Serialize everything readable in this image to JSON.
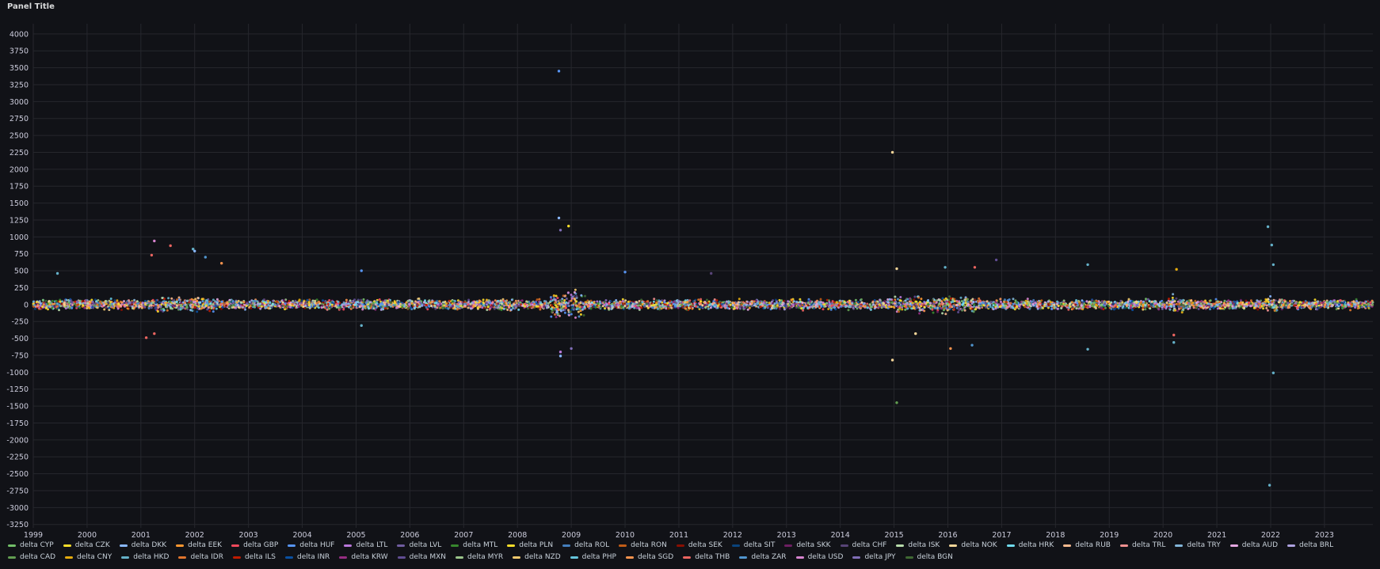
{
  "panel": {
    "title": "Panel Title"
  },
  "colors": {
    "background": "#111217",
    "grid": "#26272d",
    "axis_text": "#ccccdc"
  },
  "chart_data": {
    "type": "scatter",
    "title": "Panel Title",
    "xlabel": "",
    "ylabel": "",
    "xlim": [
      1999.0,
      2023.9
    ],
    "ylim": [
      -3300,
      4150
    ],
    "grid": true,
    "legend_position": "bottom",
    "x_ticks": [
      1999,
      2000,
      2001,
      2002,
      2003,
      2004,
      2005,
      2006,
      2007,
      2008,
      2009,
      2010,
      2011,
      2012,
      2013,
      2014,
      2015,
      2016,
      2017,
      2018,
      2019,
      2020,
      2021,
      2022,
      2023
    ],
    "y_ticks": [
      4000,
      3750,
      3500,
      3250,
      3000,
      2750,
      2500,
      2250,
      2000,
      1750,
      1500,
      1250,
      1000,
      750,
      500,
      250,
      0,
      -250,
      -500,
      -750,
      -1000,
      -1250,
      -1500,
      -1750,
      -2000,
      -2250,
      -2500,
      -2750,
      -3000,
      -3250
    ],
    "series": [
      {
        "name": "delta CYP",
        "color": "#73bf69"
      },
      {
        "name": "delta CZK",
        "color": "#fade2a"
      },
      {
        "name": "delta DKK",
        "color": "#8ab8ff"
      },
      {
        "name": "delta EEK",
        "color": "#ff9830"
      },
      {
        "name": "delta GBP",
        "color": "#f2495c"
      },
      {
        "name": "delta HUF",
        "color": "#5794f2"
      },
      {
        "name": "delta LTL",
        "color": "#b877d9"
      },
      {
        "name": "delta LVL",
        "color": "#705da0"
      },
      {
        "name": "delta MTL",
        "color": "#37872d"
      },
      {
        "name": "delta PLN",
        "color": "#fade2a"
      },
      {
        "name": "delta ROL",
        "color": "#447ebc"
      },
      {
        "name": "delta RON",
        "color": "#c15c17"
      },
      {
        "name": "delta SEK",
        "color": "#890f02"
      },
      {
        "name": "delta SIT",
        "color": "#0a437c"
      },
      {
        "name": "delta SKK",
        "color": "#6d1f62"
      },
      {
        "name": "delta CHF",
        "color": "#584477"
      },
      {
        "name": "delta ISK",
        "color": "#b7dbab"
      },
      {
        "name": "delta NOK",
        "color": "#f4d598"
      },
      {
        "name": "delta HRK",
        "color": "#70dbed"
      },
      {
        "name": "delta RUB",
        "color": "#f9ba8f"
      },
      {
        "name": "delta TRL",
        "color": "#f29191"
      },
      {
        "name": "delta TRY",
        "color": "#82b5d8"
      },
      {
        "name": "delta AUD",
        "color": "#e5a8e2"
      },
      {
        "name": "delta BRL",
        "color": "#aea2e0"
      },
      {
        "name": "delta CAD",
        "color": "#629e51"
      },
      {
        "name": "delta CNY",
        "color": "#e5ac0e"
      },
      {
        "name": "delta HKD",
        "color": "#64b0c8"
      },
      {
        "name": "delta IDR",
        "color": "#e0752d"
      },
      {
        "name": "delta ILS",
        "color": "#bf1b00"
      },
      {
        "name": "delta INR",
        "color": "#0a50a1"
      },
      {
        "name": "delta KRW",
        "color": "#962d82"
      },
      {
        "name": "delta MXN",
        "color": "#614d93"
      },
      {
        "name": "delta MYR",
        "color": "#9ac48a"
      },
      {
        "name": "delta NZD",
        "color": "#f2c96d"
      },
      {
        "name": "delta PHP",
        "color": "#65c5db"
      },
      {
        "name": "delta SGD",
        "color": "#f9934e"
      },
      {
        "name": "delta THB",
        "color": "#ea6460"
      },
      {
        "name": "delta ZAR",
        "color": "#5195ce"
      },
      {
        "name": "delta USD",
        "color": "#d683ce"
      },
      {
        "name": "delta JPY",
        "color": "#806eb7"
      },
      {
        "name": "delta BGN",
        "color": "#3f6833"
      }
    ],
    "outliers": [
      {
        "series": "delta HUF",
        "x": 2008.77,
        "y": 3450
      },
      {
        "series": "delta NOK",
        "x": 2014.97,
        "y": 2250
      },
      {
        "series": "delta DKK",
        "x": 2008.77,
        "y": 1280
      },
      {
        "series": "delta PLN",
        "x": 2008.95,
        "y": 1160
      },
      {
        "series": "delta JPY",
        "x": 2008.8,
        "y": 1100
      },
      {
        "series": "delta HKD",
        "x": 2021.95,
        "y": 1150
      },
      {
        "series": "delta HKD",
        "x": 2022.02,
        "y": 880
      },
      {
        "series": "delta USD",
        "x": 2001.25,
        "y": 940
      },
      {
        "series": "delta THB",
        "x": 2001.55,
        "y": 870
      },
      {
        "series": "delta HKD",
        "x": 2001.97,
        "y": 820
      },
      {
        "series": "delta DKK",
        "x": 2002.0,
        "y": 790
      },
      {
        "series": "delta ZAR",
        "x": 2002.2,
        "y": 700
      },
      {
        "series": "delta THB",
        "x": 2001.2,
        "y": 730
      },
      {
        "series": "delta SGD",
        "x": 2002.5,
        "y": 610
      },
      {
        "series": "delta MXN",
        "x": 2016.9,
        "y": 660
      },
      {
        "series": "delta HKD",
        "x": 2018.6,
        "y": 590
      },
      {
        "series": "delta HKD",
        "x": 2022.05,
        "y": 590
      },
      {
        "series": "delta HKD",
        "x": 2015.95,
        "y": 550
      },
      {
        "series": "delta THB",
        "x": 2016.5,
        "y": 550
      },
      {
        "series": "delta CNY",
        "x": 2020.25,
        "y": 520
      },
      {
        "series": "delta NOK",
        "x": 2015.05,
        "y": 530
      },
      {
        "series": "delta HUF",
        "x": 2005.1,
        "y": 500
      },
      {
        "series": "delta HUF",
        "x": 2010.0,
        "y": 480
      },
      {
        "series": "delta CHF",
        "x": 2011.6,
        "y": 460
      },
      {
        "series": "delta HKD",
        "x": 1999.45,
        "y": 460
      },
      {
        "series": "delta THB",
        "x": 2001.1,
        "y": -490
      },
      {
        "series": "delta THB",
        "x": 2001.25,
        "y": -430
      },
      {
        "series": "delta HKD",
        "x": 2005.1,
        "y": -310
      },
      {
        "series": "delta NOK",
        "x": 2014.97,
        "y": -820
      },
      {
        "series": "delta DKK",
        "x": 2008.8,
        "y": -760
      },
      {
        "series": "delta LTL",
        "x": 2008.8,
        "y": -700
      },
      {
        "series": "delta JPY",
        "x": 2009.0,
        "y": -650
      },
      {
        "series": "delta SGD",
        "x": 2016.05,
        "y": -650
      },
      {
        "series": "delta HKD",
        "x": 2018.6,
        "y": -660
      },
      {
        "series": "delta ZAR",
        "x": 2016.45,
        "y": -600
      },
      {
        "series": "delta HKD",
        "x": 2020.2,
        "y": -560
      },
      {
        "series": "delta THB",
        "x": 2020.2,
        "y": -450
      },
      {
        "series": "delta HKD",
        "x": 2022.05,
        "y": -1010
      },
      {
        "series": "delta CAD",
        "x": 2015.05,
        "y": -1450
      },
      {
        "series": "delta HKD",
        "x": 2021.98,
        "y": -2670
      },
      {
        "series": "delta NOK",
        "x": 2015.4,
        "y": -430
      }
    ]
  },
  "legend": {
    "items": [
      "delta CYP",
      "delta CZK",
      "delta DKK",
      "delta EEK",
      "delta GBP",
      "delta HUF",
      "delta LTL",
      "delta LVL",
      "delta MTL",
      "delta PLN",
      "delta ROL",
      "delta RON",
      "delta SEK",
      "delta SIT",
      "delta SKK",
      "delta CHF",
      "delta ISK",
      "delta NOK",
      "delta HRK",
      "delta RUB",
      "delta TRL",
      "delta TRY",
      "delta AUD",
      "delta BRL",
      "delta CAD",
      "delta CNY",
      "delta HKD",
      "delta IDR",
      "delta ILS",
      "delta INR",
      "delta KRW",
      "delta MXN",
      "delta MYR",
      "delta NZD",
      "delta PHP",
      "delta SGD",
      "delta THB",
      "delta ZAR",
      "delta USD",
      "delta JPY",
      "delta BGN"
    ]
  }
}
